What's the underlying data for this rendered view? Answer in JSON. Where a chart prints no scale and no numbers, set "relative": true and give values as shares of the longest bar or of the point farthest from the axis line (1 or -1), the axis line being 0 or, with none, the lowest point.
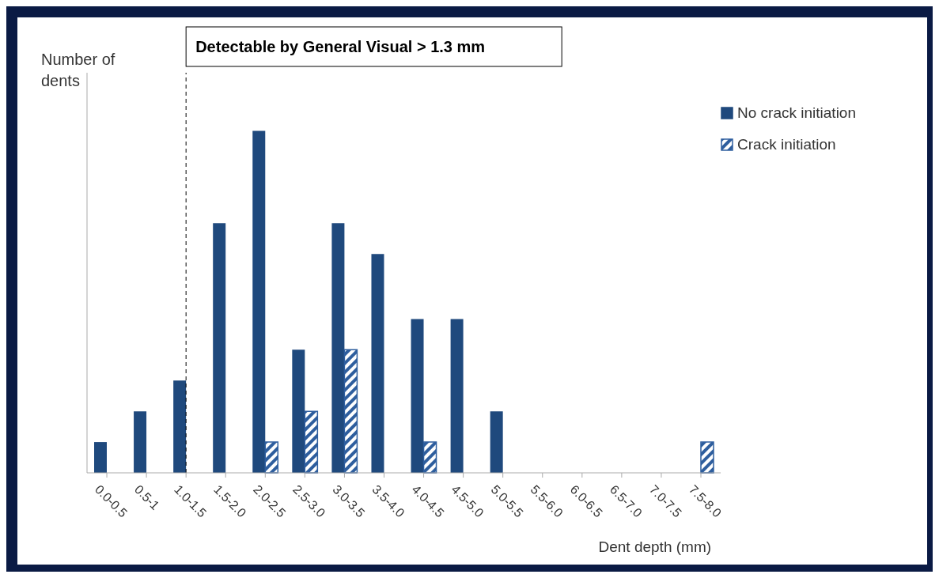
{
  "chart_data": {
    "type": "bar",
    "relative": true,
    "ylabel": "Number of dents",
    "xlabel": "Dent depth (mm)",
    "categories": [
      "0.0-0.5",
      "0.5-1",
      "1.0-1.5",
      "1.5-2.0",
      "2.0-2.5",
      "2.5-3.0",
      "3.0-3.5",
      "3.5-4.0",
      "4.0-4.5",
      "4.5-5.0",
      "5.0-5.5",
      "5.5-6.0",
      "6.0-6.5",
      "6.5-7.0",
      "7.0-7.5",
      "7.5-8.0"
    ],
    "series": [
      {
        "name": "No crack initiation",
        "color": "#1f497d",
        "values": [
          0.09,
          0.18,
          0.27,
          0.73,
          1,
          0.36,
          0.73,
          0.64,
          0.45,
          0.45,
          0.18,
          0,
          0,
          0,
          0,
          0
        ]
      },
      {
        "name": "Crack initiation",
        "color": "#2e5e9e",
        "values": [
          0,
          0,
          0,
          0,
          0.09,
          0.18,
          0.36,
          0,
          0.09,
          0,
          0,
          0,
          0,
          0,
          0,
          0.09
        ]
      }
    ],
    "ref_lines": [
      {
        "axis": "x",
        "value": "1.0-1.5",
        "label": "Detectable by General Visual > 1.3 mm",
        "line_style": "dashed",
        "color": "#000000"
      }
    ],
    "legend": "top right",
    "grid": false
  }
}
